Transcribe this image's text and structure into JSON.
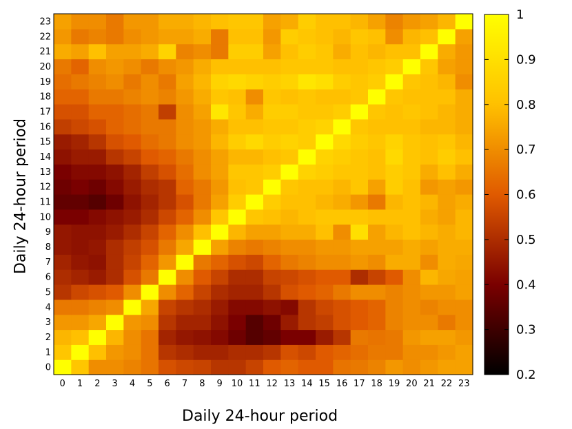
{
  "chart_data": {
    "type": "heatmap",
    "xlabel": "Daily 24-hour period",
    "ylabel": "Daily 24-hour period",
    "x_ticks": [
      "0",
      "1",
      "2",
      "3",
      "4",
      "5",
      "6",
      "7",
      "8",
      "9",
      "10",
      "11",
      "12",
      "13",
      "14",
      "15",
      "16",
      "17",
      "18",
      "19",
      "20",
      "21",
      "22",
      "23"
    ],
    "y_ticks": [
      "0",
      "1",
      "2",
      "3",
      "4",
      "5",
      "6",
      "7",
      "8",
      "9",
      "10",
      "11",
      "12",
      "13",
      "14",
      "15",
      "16",
      "17",
      "18",
      "19",
      "20",
      "21",
      "22",
      "23"
    ],
    "colorbar": {
      "range": [
        0.2,
        1.0
      ],
      "ticks": [
        "0.2",
        "0.3",
        "0.4",
        "0.5",
        "0.6",
        "0.7",
        "0.8",
        "0.9",
        "1"
      ]
    },
    "colormap": [
      "#000000",
      "#7a0000",
      "#e05a00",
      "#ffc000",
      "#ffff00"
    ],
    "values": [
      [
        1.0,
        0.82,
        0.7,
        0.7,
        0.68,
        0.65,
        0.58,
        0.56,
        0.55,
        0.52,
        0.52,
        0.55,
        0.6,
        0.62,
        0.6,
        0.6,
        0.65,
        0.66,
        0.68,
        0.72,
        0.7,
        0.72,
        0.74,
        0.74
      ],
      [
        0.82,
        1.0,
        0.8,
        0.72,
        0.7,
        0.65,
        0.52,
        0.5,
        0.48,
        0.48,
        0.5,
        0.5,
        0.52,
        0.58,
        0.56,
        0.6,
        0.62,
        0.64,
        0.66,
        0.66,
        0.7,
        0.7,
        0.72,
        0.74
      ],
      [
        0.78,
        0.8,
        1.0,
        0.78,
        0.7,
        0.65,
        0.48,
        0.45,
        0.44,
        0.42,
        0.38,
        0.34,
        0.36,
        0.4,
        0.4,
        0.46,
        0.52,
        0.66,
        0.65,
        0.66,
        0.72,
        0.74,
        0.74,
        0.72
      ],
      [
        0.72,
        0.72,
        0.75,
        1.0,
        0.72,
        0.7,
        0.52,
        0.48,
        0.48,
        0.44,
        0.4,
        0.34,
        0.38,
        0.46,
        0.52,
        0.54,
        0.58,
        0.6,
        0.62,
        0.68,
        0.7,
        0.7,
        0.66,
        0.7
      ],
      [
        0.66,
        0.66,
        0.68,
        0.7,
        1.0,
        0.75,
        0.55,
        0.52,
        0.5,
        0.46,
        0.42,
        0.42,
        0.44,
        0.42,
        0.52,
        0.56,
        0.58,
        0.6,
        0.62,
        0.68,
        0.7,
        0.68,
        0.7,
        0.7
      ],
      [
        0.52,
        0.56,
        0.58,
        0.6,
        0.7,
        1.0,
        0.7,
        0.62,
        0.55,
        0.5,
        0.48,
        0.48,
        0.52,
        0.58,
        0.6,
        0.62,
        0.66,
        0.7,
        0.7,
        0.68,
        0.7,
        0.72,
        0.72,
        0.74
      ],
      [
        0.5,
        0.48,
        0.46,
        0.5,
        0.58,
        0.66,
        1.0,
        0.7,
        0.6,
        0.55,
        0.5,
        0.5,
        0.55,
        0.56,
        0.58,
        0.6,
        0.6,
        0.5,
        0.55,
        0.6,
        0.7,
        0.78,
        0.75,
        0.74
      ],
      [
        0.48,
        0.45,
        0.44,
        0.5,
        0.55,
        0.62,
        0.72,
        1.0,
        0.66,
        0.62,
        0.58,
        0.56,
        0.62,
        0.66,
        0.68,
        0.7,
        0.7,
        0.72,
        0.7,
        0.76,
        0.76,
        0.7,
        0.76,
        0.75
      ],
      [
        0.45,
        0.44,
        0.45,
        0.5,
        0.54,
        0.58,
        0.66,
        0.75,
        1.0,
        0.74,
        0.68,
        0.66,
        0.68,
        0.7,
        0.7,
        0.72,
        0.72,
        0.74,
        0.74,
        0.74,
        0.76,
        0.74,
        0.76,
        0.76
      ],
      [
        0.45,
        0.44,
        0.44,
        0.46,
        0.5,
        0.55,
        0.62,
        0.7,
        0.8,
        1.0,
        0.78,
        0.74,
        0.74,
        0.76,
        0.76,
        0.8,
        0.7,
        0.9,
        0.74,
        0.78,
        0.8,
        0.78,
        0.76,
        0.78
      ],
      [
        0.4,
        0.4,
        0.42,
        0.44,
        0.46,
        0.5,
        0.56,
        0.62,
        0.7,
        0.82,
        1.0,
        0.82,
        0.8,
        0.78,
        0.8,
        0.82,
        0.82,
        0.82,
        0.8,
        0.8,
        0.8,
        0.76,
        0.74,
        0.78
      ],
      [
        0.36,
        0.36,
        0.34,
        0.38,
        0.44,
        0.48,
        0.52,
        0.58,
        0.66,
        0.74,
        0.84,
        1.0,
        0.84,
        0.8,
        0.8,
        0.78,
        0.76,
        0.72,
        0.66,
        0.78,
        0.8,
        0.78,
        0.74,
        0.76
      ],
      [
        0.38,
        0.4,
        0.38,
        0.42,
        0.46,
        0.5,
        0.52,
        0.62,
        0.66,
        0.72,
        0.8,
        0.82,
        1.0,
        0.82,
        0.8,
        0.8,
        0.78,
        0.82,
        0.74,
        0.84,
        0.8,
        0.72,
        0.74,
        0.72
      ],
      [
        0.4,
        0.42,
        0.42,
        0.44,
        0.48,
        0.54,
        0.58,
        0.64,
        0.7,
        0.74,
        0.82,
        0.82,
        0.84,
        1.0,
        0.86,
        0.84,
        0.82,
        0.82,
        0.8,
        0.84,
        0.82,
        0.76,
        0.8,
        0.76
      ],
      [
        0.44,
        0.46,
        0.46,
        0.52,
        0.55,
        0.6,
        0.62,
        0.66,
        0.7,
        0.74,
        0.78,
        0.78,
        0.8,
        0.82,
        1.0,
        0.86,
        0.84,
        0.82,
        0.8,
        0.88,
        0.82,
        0.8,
        0.84,
        0.8
      ],
      [
        0.46,
        0.48,
        0.52,
        0.58,
        0.6,
        0.64,
        0.66,
        0.7,
        0.72,
        0.78,
        0.84,
        0.88,
        0.84,
        0.86,
        0.84,
        1.0,
        0.88,
        0.84,
        0.82,
        0.86,
        0.82,
        0.8,
        0.82,
        0.78
      ],
      [
        0.54,
        0.56,
        0.58,
        0.62,
        0.64,
        0.66,
        0.66,
        0.7,
        0.72,
        0.76,
        0.8,
        0.8,
        0.82,
        0.82,
        0.84,
        0.86,
        1.0,
        0.82,
        0.8,
        0.8,
        0.8,
        0.78,
        0.78,
        0.76
      ],
      [
        0.58,
        0.58,
        0.62,
        0.62,
        0.64,
        0.66,
        0.54,
        0.7,
        0.74,
        0.92,
        0.82,
        0.76,
        0.84,
        0.84,
        0.82,
        0.82,
        0.84,
        1.0,
        0.82,
        0.8,
        0.82,
        0.8,
        0.78,
        0.76
      ],
      [
        0.62,
        0.62,
        0.66,
        0.66,
        0.68,
        0.7,
        0.68,
        0.72,
        0.76,
        0.82,
        0.8,
        0.7,
        0.82,
        0.8,
        0.82,
        0.8,
        0.8,
        0.82,
        1.0,
        0.82,
        0.8,
        0.8,
        0.8,
        0.76
      ],
      [
        0.64,
        0.66,
        0.68,
        0.7,
        0.66,
        0.7,
        0.66,
        0.74,
        0.78,
        0.86,
        0.88,
        0.86,
        0.84,
        0.86,
        0.92,
        0.9,
        0.84,
        0.82,
        0.84,
        1.0,
        0.82,
        0.8,
        0.78,
        0.7
      ],
      [
        0.66,
        0.62,
        0.7,
        0.72,
        0.7,
        0.66,
        0.7,
        0.72,
        0.76,
        0.8,
        0.8,
        0.8,
        0.8,
        0.82,
        0.82,
        0.82,
        0.8,
        0.8,
        0.82,
        0.84,
        1.0,
        0.82,
        0.74,
        0.72
      ],
      [
        0.76,
        0.74,
        0.8,
        0.74,
        0.74,
        0.76,
        0.86,
        0.68,
        0.7,
        0.66,
        0.84,
        0.84,
        0.74,
        0.8,
        0.84,
        0.82,
        0.76,
        0.8,
        0.78,
        0.8,
        0.8,
        1.0,
        0.76,
        0.72
      ],
      [
        0.72,
        0.66,
        0.68,
        0.66,
        0.7,
        0.72,
        0.74,
        0.74,
        0.76,
        0.66,
        0.8,
        0.8,
        0.72,
        0.84,
        0.82,
        0.8,
        0.78,
        0.82,
        0.8,
        0.7,
        0.78,
        0.8,
        1.0,
        0.74
      ],
      [
        0.74,
        0.7,
        0.7,
        0.66,
        0.72,
        0.72,
        0.76,
        0.76,
        0.78,
        0.8,
        0.82,
        0.82,
        0.74,
        0.76,
        0.84,
        0.8,
        0.8,
        0.78,
        0.74,
        0.68,
        0.72,
        0.74,
        0.78,
        1.0
      ]
    ]
  }
}
